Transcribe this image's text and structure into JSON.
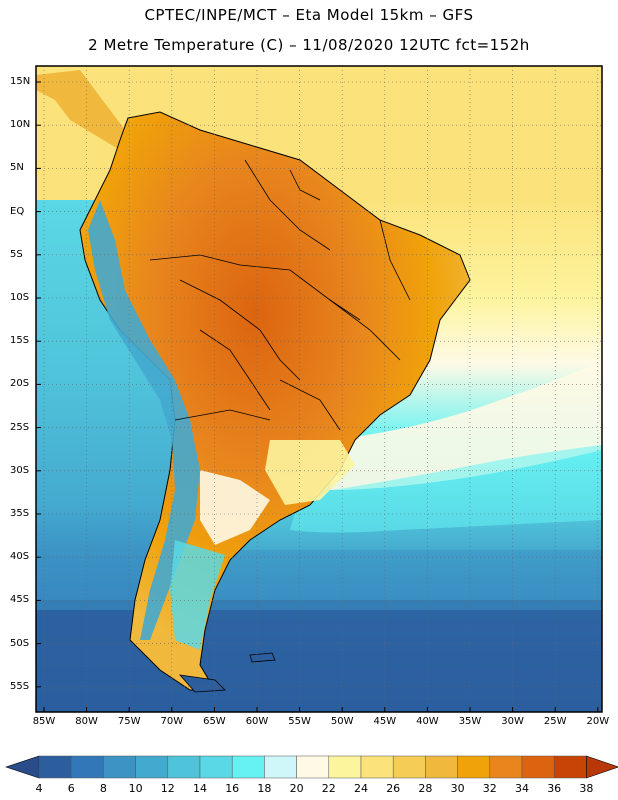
{
  "header": {
    "line1": "CPTEC/INPE/MCT  –   Eta Model 15km  –  GFS",
    "line2": "2 Metre Temperature (C)  –  11/08/2020 12UTC fct=152h"
  },
  "lat_labels": [
    "15N",
    "10N",
    "5N",
    "EQ",
    "5S",
    "10S",
    "15S",
    "20S",
    "25S",
    "30S",
    "35S",
    "40S",
    "45S",
    "50S",
    "55S"
  ],
  "lon_labels": [
    "85W",
    "80W",
    "75W",
    "70W",
    "65W",
    "60W",
    "55W",
    "50W",
    "45W",
    "40W",
    "35W",
    "30W",
    "25W",
    "20W"
  ],
  "colorbar": {
    "labels": [
      "4",
      "6",
      "8",
      "10",
      "12",
      "14",
      "16",
      "18",
      "20",
      "22",
      "24",
      "26",
      "28",
      "30",
      "32",
      "34",
      "36",
      "38"
    ],
    "colors": [
      "#2c5e9e",
      "#3278b8",
      "#3c93c4",
      "#44a9cf",
      "#4fc3da",
      "#5bd8e5",
      "#66f2f2",
      "#cff6f9",
      "#fefae6",
      "#fdf49e",
      "#fbe27a",
      "#f5cc55",
      "#f0b93e",
      "#f0a20a",
      "#e8861d",
      "#dc6410",
      "#c74406"
    ],
    "low_color": "#2a4c8a",
    "high_color": "#b9380a"
  },
  "map_colors": {
    "ocean_cold": "#2c5e9e",
    "ocean_cool": "#3c93c4",
    "ocean_mid": "#4fc3da",
    "ocean_warm": "#66f2f2",
    "pale": "#fefae6",
    "warm_yellow": "#f5cc55",
    "land_hot": "#e8861d",
    "land_hotter": "#dc6410",
    "land_orange": "#f0b93e"
  }
}
